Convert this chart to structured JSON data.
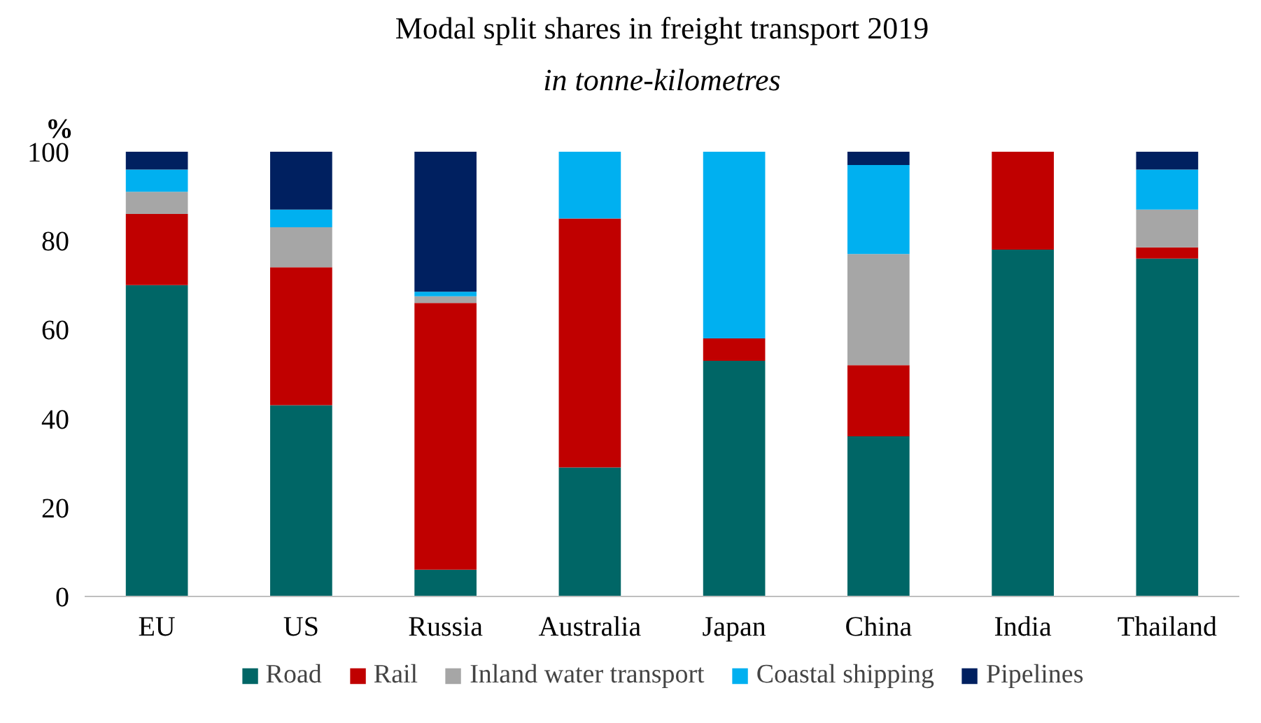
{
  "chart_data": {
    "type": "bar",
    "title": "Modal split shares in freight transport 2019",
    "subtitle": "in tonne-kilometres",
    "ylabel": "%",
    "categories": [
      "EU",
      "US",
      "Russia",
      "Australia",
      "Japan",
      "China",
      "India",
      "Thailand"
    ],
    "stacked": true,
    "ylim": [
      0,
      100
    ],
    "yticks": [
      0,
      20,
      40,
      60,
      80,
      100
    ],
    "legend": "bottom",
    "series": [
      {
        "name": "Road",
        "color": "#006666",
        "values": [
          70,
          43,
          6,
          29,
          53,
          36,
          78,
          76
        ]
      },
      {
        "name": "Rail",
        "color": "#c00000",
        "values": [
          16,
          31,
          60,
          56,
          5,
          16,
          22,
          2.5
        ]
      },
      {
        "name": "Inland water transport",
        "color": "#a6a6a6",
        "values": [
          5,
          9,
          1.5,
          0,
          0,
          25,
          0,
          8.5
        ]
      },
      {
        "name": "Coastal shipping",
        "color": "#00b0f0",
        "values": [
          5,
          4,
          1,
          15,
          42,
          20,
          0,
          9
        ]
      },
      {
        "name": "Pipelines",
        "color": "#002060",
        "values": [
          4,
          13,
          31.5,
          0,
          0,
          3,
          0,
          4
        ]
      }
    ]
  }
}
